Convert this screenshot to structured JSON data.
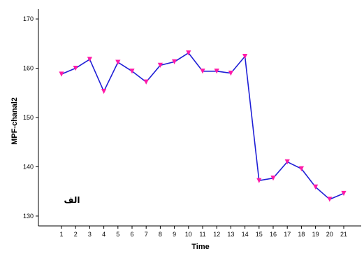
{
  "chart_data": {
    "type": "line",
    "title": "",
    "xlabel": "Time",
    "ylabel": "MPF-chanal2",
    "x": [
      1,
      2,
      3,
      4,
      5,
      6,
      7,
      8,
      9,
      10,
      11,
      12,
      13,
      14,
      15,
      16,
      17,
      18,
      19,
      20,
      21
    ],
    "series": [
      {
        "values": [
          158.8,
          160.0,
          161.8,
          155.3,
          161.2,
          159.4,
          157.2,
          160.6,
          161.3,
          163.1,
          159.4,
          159.4,
          159.0,
          162.4,
          137.2,
          137.7,
          141.0,
          139.6,
          135.9,
          133.4,
          134.6
        ]
      }
    ],
    "ylim": [
      128,
      172
    ],
    "yticks": [
      130,
      140,
      150,
      160,
      170
    ],
    "grid": false,
    "annotation": "الف",
    "colors": {
      "line": "#1f1fd6",
      "marker": "#ff1aa8",
      "axis": "#000000"
    }
  }
}
